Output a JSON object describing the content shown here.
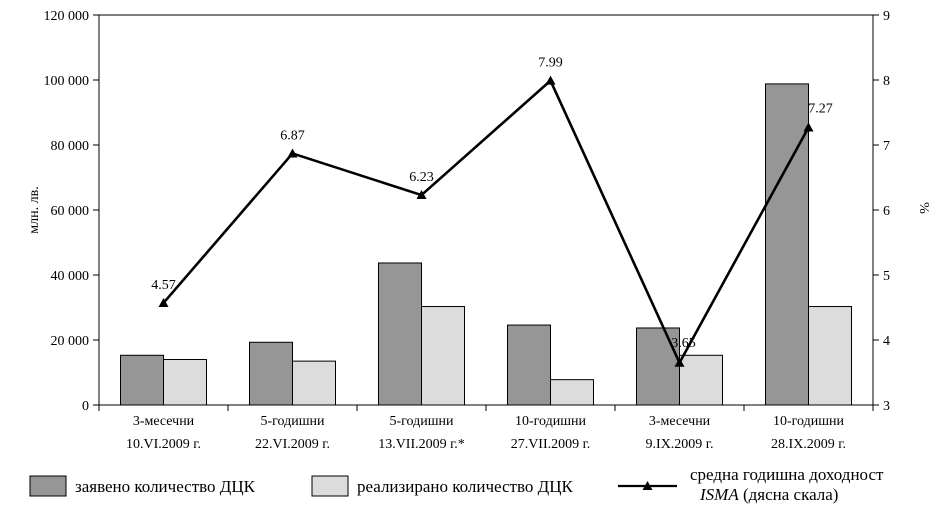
{
  "chart_data": {
    "type": "bar",
    "categories": [
      {
        "line1": "3-месечни",
        "line2": "10.VI.2009 г."
      },
      {
        "line1": "5-годишни",
        "line2": "22.VI.2009 г."
      },
      {
        "line1": "5-годишни",
        "line2": "13.VII.2009 г.*"
      },
      {
        "line1": "10-годишни",
        "line2": "27.VII.2009 г."
      },
      {
        "line1": "3-месечни",
        "line2": "9.IX.2009 г."
      },
      {
        "line1": "10-годишни",
        "line2": "28.IX.2009 г."
      }
    ],
    "series": [
      {
        "name": "заявено количество ДЦК",
        "type": "bar",
        "axis": "left",
        "color": "#969696",
        "values": [
          15300,
          19300,
          43700,
          24600,
          23700,
          98800
        ]
      },
      {
        "name": "реализирано количество ДЦК",
        "type": "bar",
        "axis": "left",
        "color": "#dcdcdc",
        "values": [
          14000,
          13500,
          30300,
          7800,
          15300,
          30300
        ]
      },
      {
        "name_line1": "средна годишна доходност",
        "name_line2_italic": "ISMA",
        "name_line2_rest": " (дясна скала)",
        "type": "line",
        "axis": "right",
        "color": "#000000",
        "values": [
          4.57,
          6.87,
          6.23,
          7.99,
          3.65,
          7.27
        ],
        "labels": [
          "4.57",
          "6.87",
          "6.23",
          "7.99",
          "3.65",
          "7.27"
        ]
      }
    ],
    "y_left": {
      "label": "млн. лв.",
      "min": 0,
      "max": 120000,
      "ticks": [
        "0",
        "20 000",
        "40 000",
        "60 000",
        "80 000",
        "100 000",
        "120 000"
      ]
    },
    "y_right": {
      "label": "%",
      "min": 3,
      "max": 9,
      "ticks": [
        "3",
        "4",
        "5",
        "6",
        "7",
        "8",
        "9"
      ]
    },
    "grid": false,
    "legend_position": "bottom"
  }
}
